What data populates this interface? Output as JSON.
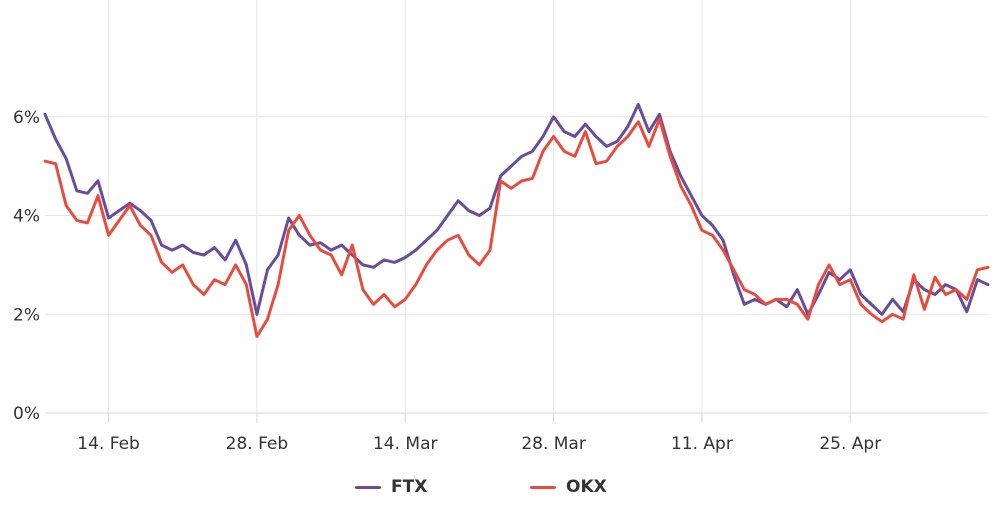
{
  "chart_data": {
    "type": "line",
    "title": "",
    "xlabel": "",
    "ylabel": "",
    "x_range": [
      "2022-02-08",
      "2022-05-08"
    ],
    "ylim": [
      0,
      8
    ],
    "y_unit": "%",
    "grid": true,
    "legend_position": "bottom",
    "x_ticks": [
      {
        "date": "2022-02-14",
        "label": "14. Feb"
      },
      {
        "date": "2022-02-28",
        "label": "28. Feb"
      },
      {
        "date": "2022-03-14",
        "label": "14. Mar"
      },
      {
        "date": "2022-03-28",
        "label": "28. Mar"
      },
      {
        "date": "2022-04-11",
        "label": "11. Apr"
      },
      {
        "date": "2022-04-25",
        "label": "25. Apr"
      }
    ],
    "y_ticks": [
      {
        "value": 0,
        "label": "0%"
      },
      {
        "value": 2,
        "label": "2%"
      },
      {
        "value": 4,
        "label": "4%"
      },
      {
        "value": 6,
        "label": "6%"
      }
    ],
    "series": [
      {
        "name": "FTX",
        "color": "#6a4c9c",
        "points": [
          [
            "2022-02-08",
            6.05
          ],
          [
            "2022-02-09",
            5.55
          ],
          [
            "2022-02-10",
            5.15
          ],
          [
            "2022-02-11",
            4.5
          ],
          [
            "2022-02-12",
            4.45
          ],
          [
            "2022-02-13",
            4.7
          ],
          [
            "2022-02-14",
            3.95
          ],
          [
            "2022-02-15",
            4.1
          ],
          [
            "2022-02-16",
            4.25
          ],
          [
            "2022-02-17",
            4.1
          ],
          [
            "2022-02-18",
            3.9
          ],
          [
            "2022-02-19",
            3.4
          ],
          [
            "2022-02-20",
            3.3
          ],
          [
            "2022-02-21",
            3.4
          ],
          [
            "2022-02-22",
            3.25
          ],
          [
            "2022-02-23",
            3.2
          ],
          [
            "2022-02-24",
            3.35
          ],
          [
            "2022-02-25",
            3.1
          ],
          [
            "2022-02-26",
            3.5
          ],
          [
            "2022-02-27",
            3.0
          ],
          [
            "2022-02-28",
            2.0
          ],
          [
            "2022-03-01",
            2.9
          ],
          [
            "2022-03-02",
            3.2
          ],
          [
            "2022-03-03",
            3.95
          ],
          [
            "2022-03-04",
            3.6
          ],
          [
            "2022-03-05",
            3.4
          ],
          [
            "2022-03-06",
            3.45
          ],
          [
            "2022-03-07",
            3.3
          ],
          [
            "2022-03-08",
            3.4
          ],
          [
            "2022-03-09",
            3.2
          ],
          [
            "2022-03-10",
            3.0
          ],
          [
            "2022-03-11",
            2.95
          ],
          [
            "2022-03-12",
            3.1
          ],
          [
            "2022-03-13",
            3.05
          ],
          [
            "2022-03-14",
            3.15
          ],
          [
            "2022-03-15",
            3.3
          ],
          [
            "2022-03-16",
            3.5
          ],
          [
            "2022-03-17",
            3.7
          ],
          [
            "2022-03-18",
            4.0
          ],
          [
            "2022-03-19",
            4.3
          ],
          [
            "2022-03-20",
            4.1
          ],
          [
            "2022-03-21",
            4.0
          ],
          [
            "2022-03-22",
            4.15
          ],
          [
            "2022-03-23",
            4.8
          ],
          [
            "2022-03-24",
            5.0
          ],
          [
            "2022-03-25",
            5.2
          ],
          [
            "2022-03-26",
            5.3
          ],
          [
            "2022-03-27",
            5.6
          ],
          [
            "2022-03-28",
            6.0
          ],
          [
            "2022-03-29",
            5.7
          ],
          [
            "2022-03-30",
            5.6
          ],
          [
            "2022-03-31",
            5.85
          ],
          [
            "2022-04-01",
            5.6
          ],
          [
            "2022-04-02",
            5.4
          ],
          [
            "2022-04-03",
            5.5
          ],
          [
            "2022-04-04",
            5.8
          ],
          [
            "2022-04-05",
            6.25
          ],
          [
            "2022-04-06",
            5.7
          ],
          [
            "2022-04-07",
            6.05
          ],
          [
            "2022-04-08",
            5.3
          ],
          [
            "2022-04-09",
            4.8
          ],
          [
            "2022-04-10",
            4.4
          ],
          [
            "2022-04-11",
            4.0
          ],
          [
            "2022-04-12",
            3.8
          ],
          [
            "2022-04-13",
            3.5
          ],
          [
            "2022-04-14",
            2.8
          ],
          [
            "2022-04-15",
            2.2
          ],
          [
            "2022-04-16",
            2.3
          ],
          [
            "2022-04-17",
            2.2
          ],
          [
            "2022-04-18",
            2.3
          ],
          [
            "2022-04-19",
            2.15
          ],
          [
            "2022-04-20",
            2.5
          ],
          [
            "2022-04-21",
            2.0
          ],
          [
            "2022-04-22",
            2.4
          ],
          [
            "2022-04-23",
            2.85
          ],
          [
            "2022-04-24",
            2.7
          ],
          [
            "2022-04-25",
            2.9
          ],
          [
            "2022-04-26",
            2.4
          ],
          [
            "2022-04-27",
            2.2
          ],
          [
            "2022-04-28",
            2.0
          ],
          [
            "2022-04-29",
            2.3
          ],
          [
            "2022-04-30",
            2.05
          ],
          [
            "2022-05-01",
            2.7
          ],
          [
            "2022-05-02",
            2.5
          ],
          [
            "2022-05-03",
            2.4
          ],
          [
            "2022-05-04",
            2.6
          ],
          [
            "2022-05-05",
            2.5
          ],
          [
            "2022-05-06",
            2.05
          ],
          [
            "2022-05-07",
            2.7
          ],
          [
            "2022-05-08",
            2.6
          ]
        ]
      },
      {
        "name": "OKX",
        "color": "#e84c3d",
        "points": [
          [
            "2022-02-08",
            5.1
          ],
          [
            "2022-02-09",
            5.05
          ],
          [
            "2022-02-10",
            4.2
          ],
          [
            "2022-02-11",
            3.9
          ],
          [
            "2022-02-12",
            3.85
          ],
          [
            "2022-02-13",
            4.4
          ],
          [
            "2022-02-14",
            3.6
          ],
          [
            "2022-02-15",
            3.9
          ],
          [
            "2022-02-16",
            4.2
          ],
          [
            "2022-02-17",
            3.8
          ],
          [
            "2022-02-18",
            3.6
          ],
          [
            "2022-02-19",
            3.05
          ],
          [
            "2022-02-20",
            2.85
          ],
          [
            "2022-02-21",
            3.0
          ],
          [
            "2022-02-22",
            2.6
          ],
          [
            "2022-02-23",
            2.4
          ],
          [
            "2022-02-24",
            2.7
          ],
          [
            "2022-02-25",
            2.6
          ],
          [
            "2022-02-26",
            3.0
          ],
          [
            "2022-02-27",
            2.6
          ],
          [
            "2022-02-28",
            1.55
          ],
          [
            "2022-03-01",
            1.9
          ],
          [
            "2022-03-02",
            2.6
          ],
          [
            "2022-03-03",
            3.7
          ],
          [
            "2022-03-04",
            4.0
          ],
          [
            "2022-03-05",
            3.6
          ],
          [
            "2022-03-06",
            3.3
          ],
          [
            "2022-03-07",
            3.2
          ],
          [
            "2022-03-08",
            2.8
          ],
          [
            "2022-03-09",
            3.4
          ],
          [
            "2022-03-10",
            2.5
          ],
          [
            "2022-03-11",
            2.2
          ],
          [
            "2022-03-12",
            2.4
          ],
          [
            "2022-03-13",
            2.15
          ],
          [
            "2022-03-14",
            2.3
          ],
          [
            "2022-03-15",
            2.6
          ],
          [
            "2022-03-16",
            3.0
          ],
          [
            "2022-03-17",
            3.3
          ],
          [
            "2022-03-18",
            3.5
          ],
          [
            "2022-03-19",
            3.6
          ],
          [
            "2022-03-20",
            3.2
          ],
          [
            "2022-03-21",
            3.0
          ],
          [
            "2022-03-22",
            3.3
          ],
          [
            "2022-03-23",
            4.7
          ],
          [
            "2022-03-24",
            4.55
          ],
          [
            "2022-03-25",
            4.7
          ],
          [
            "2022-03-26",
            4.75
          ],
          [
            "2022-03-27",
            5.3
          ],
          [
            "2022-03-28",
            5.6
          ],
          [
            "2022-03-29",
            5.3
          ],
          [
            "2022-03-30",
            5.2
          ],
          [
            "2022-03-31",
            5.7
          ],
          [
            "2022-04-01",
            5.05
          ],
          [
            "2022-04-02",
            5.1
          ],
          [
            "2022-04-03",
            5.4
          ],
          [
            "2022-04-04",
            5.6
          ],
          [
            "2022-04-05",
            5.9
          ],
          [
            "2022-04-06",
            5.4
          ],
          [
            "2022-04-07",
            5.95
          ],
          [
            "2022-04-08",
            5.2
          ],
          [
            "2022-04-09",
            4.6
          ],
          [
            "2022-04-10",
            4.2
          ],
          [
            "2022-04-11",
            3.7
          ],
          [
            "2022-04-12",
            3.6
          ],
          [
            "2022-04-13",
            3.3
          ],
          [
            "2022-04-14",
            2.9
          ],
          [
            "2022-04-15",
            2.5
          ],
          [
            "2022-04-16",
            2.4
          ],
          [
            "2022-04-17",
            2.2
          ],
          [
            "2022-04-18",
            2.3
          ],
          [
            "2022-04-19",
            2.3
          ],
          [
            "2022-04-20",
            2.2
          ],
          [
            "2022-04-21",
            1.9
          ],
          [
            "2022-04-22",
            2.6
          ],
          [
            "2022-04-23",
            3.0
          ],
          [
            "2022-04-24",
            2.6
          ],
          [
            "2022-04-25",
            2.7
          ],
          [
            "2022-04-26",
            2.2
          ],
          [
            "2022-04-27",
            2.0
          ],
          [
            "2022-04-28",
            1.85
          ],
          [
            "2022-04-29",
            2.0
          ],
          [
            "2022-04-30",
            1.9
          ],
          [
            "2022-05-01",
            2.8
          ],
          [
            "2022-05-02",
            2.1
          ],
          [
            "2022-05-03",
            2.75
          ],
          [
            "2022-05-04",
            2.4
          ],
          [
            "2022-05-05",
            2.5
          ],
          [
            "2022-05-06",
            2.3
          ],
          [
            "2022-05-07",
            2.9
          ],
          [
            "2022-05-08",
            2.95
          ]
        ]
      }
    ]
  }
}
